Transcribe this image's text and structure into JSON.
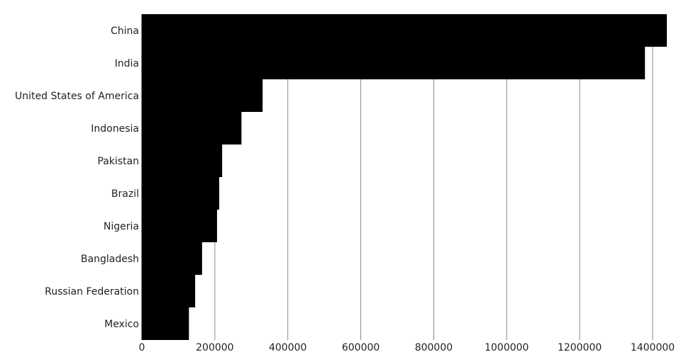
{
  "chart_data": {
    "type": "bar",
    "orientation": "horizontal",
    "title": "",
    "xlabel": "",
    "ylabel": "",
    "categories": [
      "China",
      "India",
      "United States of America",
      "Indonesia",
      "Pakistan",
      "Brazil",
      "Nigeria",
      "Bangladesh",
      "Russian Federation",
      "Mexico"
    ],
    "values": [
      1439000,
      1379000,
      331000,
      273000,
      220000,
      212000,
      206000,
      165000,
      146000,
      129000
    ],
    "xlim": [
      0,
      1440000
    ],
    "xticks": [
      0,
      200000,
      400000,
      600000,
      800000,
      1000000,
      1200000,
      1400000
    ],
    "xtick_labels": [
      "0",
      "200000",
      "400000",
      "600000",
      "800000",
      "1000000",
      "1200000",
      "1400000"
    ],
    "grid": "vertical",
    "bar_color": "#000000",
    "grid_color": "#888888"
  }
}
